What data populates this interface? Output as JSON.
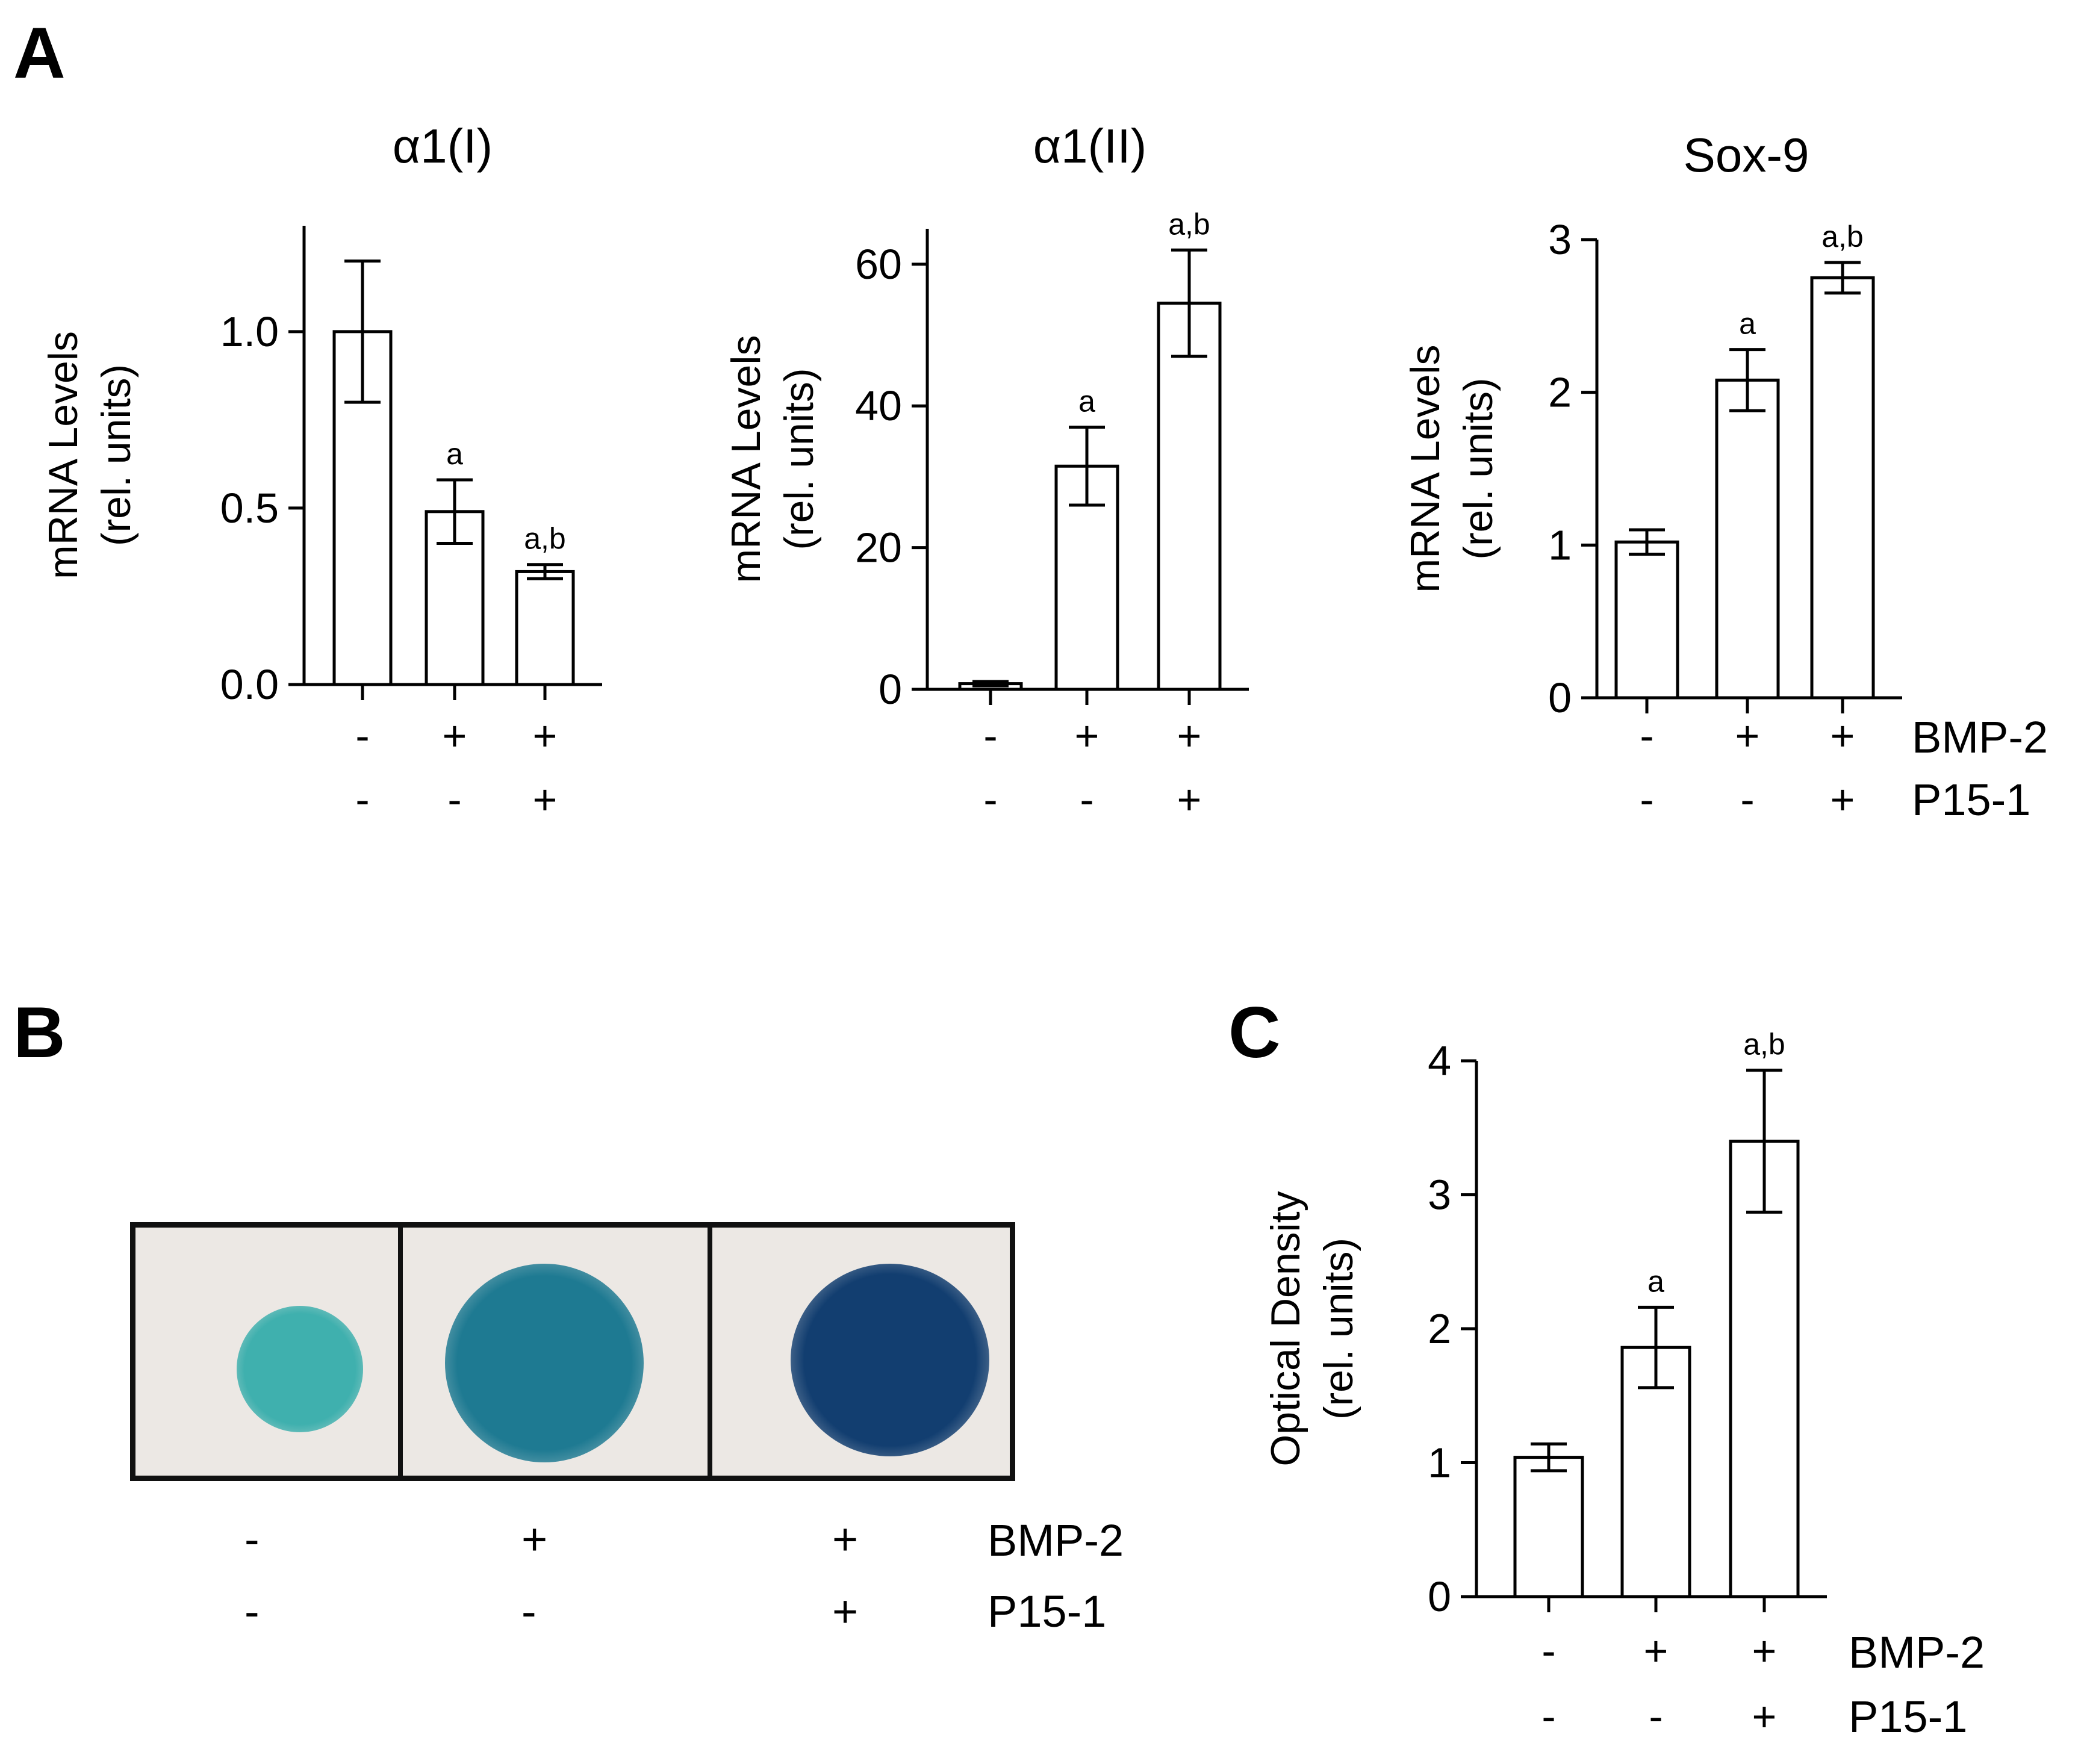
{
  "panels": {
    "a_letter": "A",
    "b_letter": "B",
    "c_letter": "C"
  },
  "treatments": {
    "row1_name": "BMP-2",
    "row2_name": "P15-1",
    "row1_signs": [
      "-",
      "+",
      "+"
    ],
    "row2_signs": [
      "-",
      "-",
      "+"
    ]
  },
  "panel_b": {
    "wells": [
      {
        "stain_intensity": "low",
        "color": "#3fb0ae"
      },
      {
        "stain_intensity": "medium",
        "color": "#1e7a92"
      },
      {
        "stain_intensity": "high",
        "color": "#123e70"
      }
    ]
  },
  "chart_data": [
    {
      "panel": "A",
      "type": "bar",
      "title": "α1(I)",
      "ylabel_line1": "mRNA Levels",
      "ylabel_line2": "(rel. units)",
      "xlabel": "",
      "ylim": [
        0,
        1.3
      ],
      "yticks": [
        0.0,
        0.5,
        1.0
      ],
      "ytick_labels": [
        "0.0",
        "0.5",
        "1.0"
      ],
      "categories": [
        "-/-",
        "+/-",
        "+/+"
      ],
      "values": [
        1.0,
        0.49,
        0.32
      ],
      "errors": [
        0.2,
        0.09,
        0.02
      ],
      "annotations": [
        "",
        "a",
        "a,b"
      ]
    },
    {
      "panel": "A",
      "type": "bar",
      "title": "α1(II)",
      "ylabel_line1": "mRNA Levels",
      "ylabel_line2": "(rel. units)",
      "xlabel": "",
      "ylim": [
        0,
        65
      ],
      "yticks": [
        0,
        20,
        40,
        60
      ],
      "ytick_labels": [
        "0",
        "20",
        "40",
        "60"
      ],
      "categories": [
        "-/-",
        "+/-",
        "+/+"
      ],
      "values": [
        0.8,
        31.5,
        54.5
      ],
      "errors": [
        0.3,
        5.5,
        7.5
      ],
      "annotations": [
        "",
        "a",
        "a,b"
      ]
    },
    {
      "panel": "A",
      "type": "bar",
      "title": "Sox-9",
      "ylabel_line1": "mRNA Levels",
      "ylabel_line2": "(rel. units)",
      "xlabel": "",
      "ylim": [
        0,
        3
      ],
      "yticks": [
        0,
        1,
        2,
        3
      ],
      "ytick_labels": [
        "0",
        "1",
        "2",
        "3"
      ],
      "categories": [
        "-/-",
        "+/-",
        "+/+"
      ],
      "values": [
        1.02,
        2.08,
        2.75
      ],
      "errors": [
        0.08,
        0.2,
        0.1
      ],
      "annotations": [
        "",
        "a",
        "a,b"
      ]
    },
    {
      "panel": "C",
      "type": "bar",
      "title": "",
      "ylabel_line1": "Optical Density",
      "ylabel_line2": "(rel. units)",
      "xlabel": "",
      "ylim": [
        0,
        4
      ],
      "yticks": [
        0,
        1,
        2,
        3,
        4
      ],
      "ytick_labels": [
        "0",
        "1",
        "2",
        "3",
        "4"
      ],
      "categories": [
        "-/-",
        "+/-",
        "+/+"
      ],
      "values": [
        1.04,
        1.86,
        3.4
      ],
      "errors": [
        0.1,
        0.3,
        0.53
      ],
      "annotations": [
        "",
        "a",
        "a,b"
      ]
    }
  ]
}
